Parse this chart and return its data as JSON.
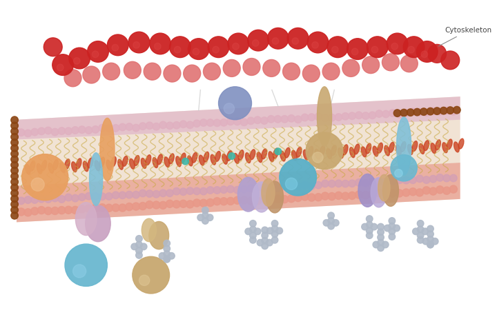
{
  "bg_color": "#ffffff",
  "title": "",
  "cytoskeleton_label": "Cytoskeleton",
  "membrane": {
    "top_surface_color": "#e8a090",
    "bottom_surface_color": "#f0c0b0",
    "lipid_head_color": "#e8a090",
    "lipid_head_color2": "#d4a0c0",
    "lipid_tail_color": "#f5e0c0",
    "inner_head_color": "#e8c0d0",
    "brown_bead_color": "#a05030",
    "red_bead_color": "#cc3333",
    "pink_bead_color": "#e08080"
  },
  "proteins": {
    "blue_sphere_large": "#6ab5cc",
    "tan_sphere": "#d4aa70",
    "orange_sphere": "#e8a060",
    "purple_blue_sphere": "#8090c0",
    "light_blue_protein": "#80c0d8",
    "orange_protein": "#e8a060",
    "purple_protein": "#a090c0",
    "tan_protein": "#c8a870",
    "glyco_bead": "#b0b8c0"
  }
}
